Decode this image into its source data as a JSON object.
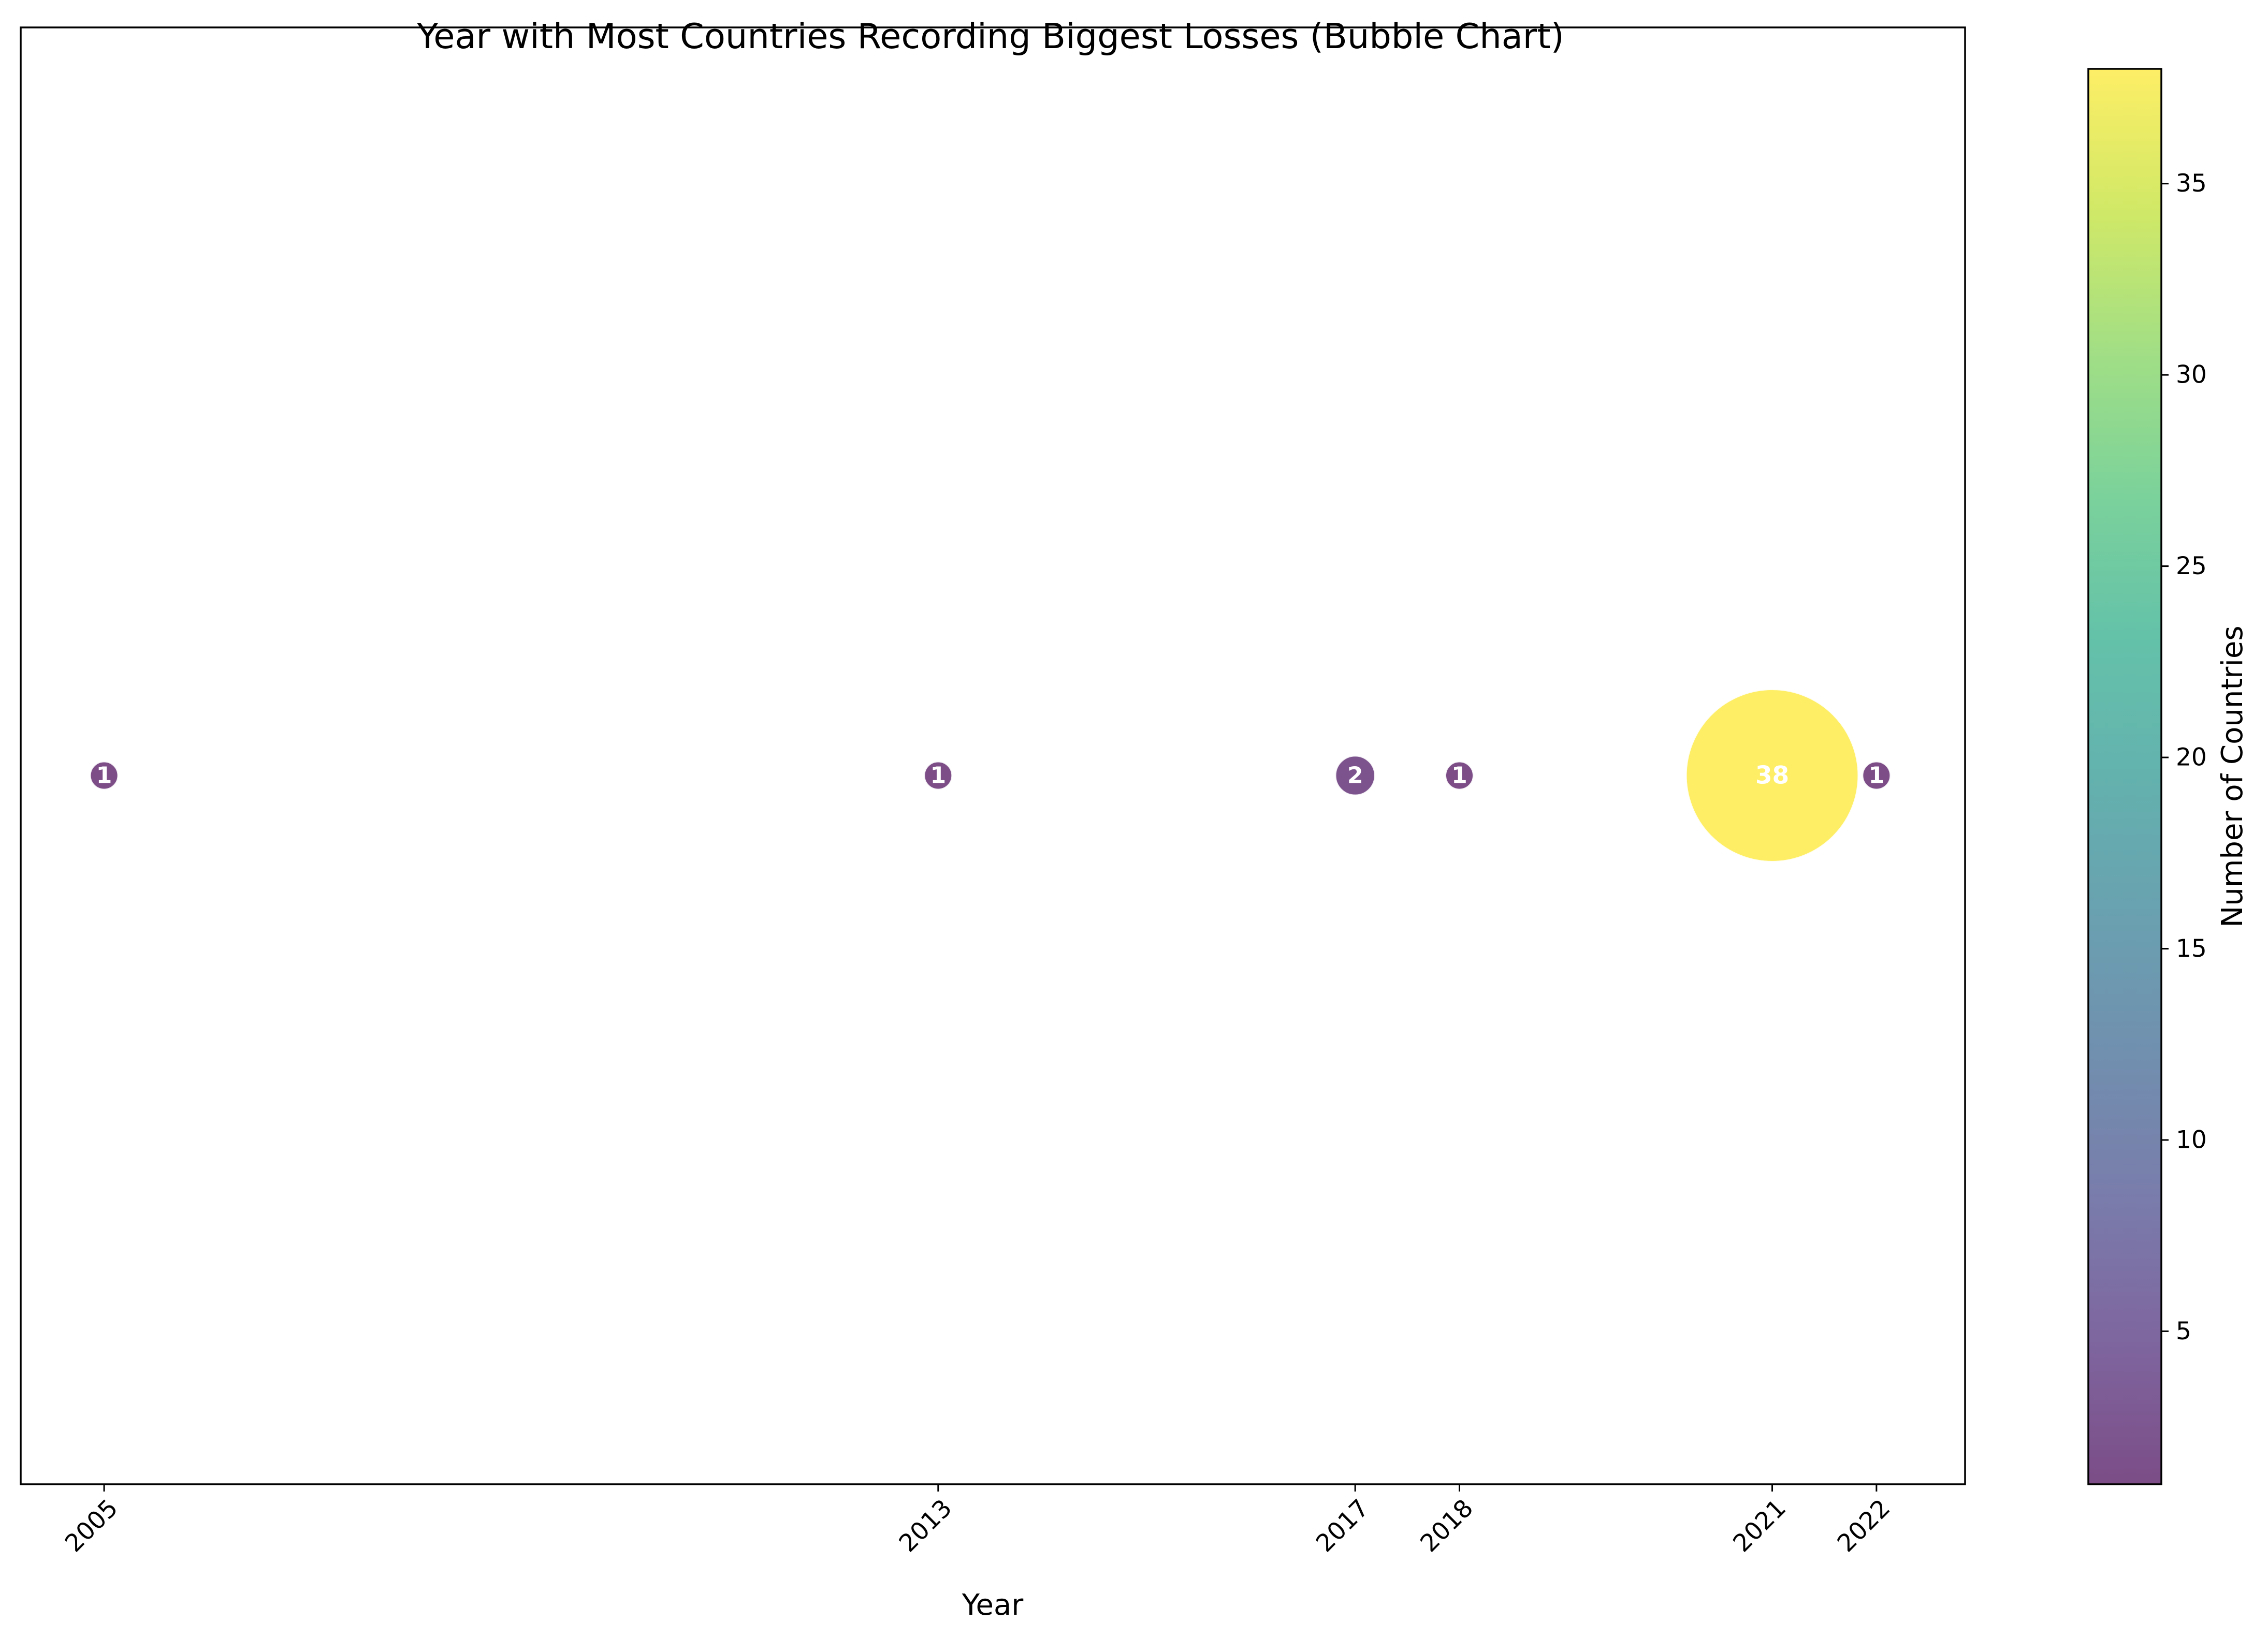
{
  "chart_data": {
    "type": "scatter",
    "title": "Year with Most Countries Recording Biggest Losses (Bubble Chart)",
    "xlabel": "Year",
    "ylabel": "",
    "x_ticks": [
      "2005",
      "2013",
      "2017",
      "2018",
      "2021",
      "2022"
    ],
    "xlim": [
      2004.2,
      2022.85
    ],
    "y_visible": false,
    "grid": false,
    "points": [
      {
        "year": 2005,
        "count": 1,
        "label": "1"
      },
      {
        "year": 2013,
        "count": 1,
        "label": "1"
      },
      {
        "year": 2017,
        "count": 2,
        "label": "2"
      },
      {
        "year": 2018,
        "count": 1,
        "label": "1"
      },
      {
        "year": 2021,
        "count": 38,
        "label": "38"
      },
      {
        "year": 2022,
        "count": 1,
        "label": "1"
      }
    ],
    "colorbar": {
      "label": "Number of Countries",
      "range": [
        1,
        38
      ],
      "ticks": [
        "5",
        "10",
        "15",
        "20",
        "25",
        "30",
        "35"
      ],
      "colormap": "viridis",
      "alpha": 0.7
    }
  }
}
